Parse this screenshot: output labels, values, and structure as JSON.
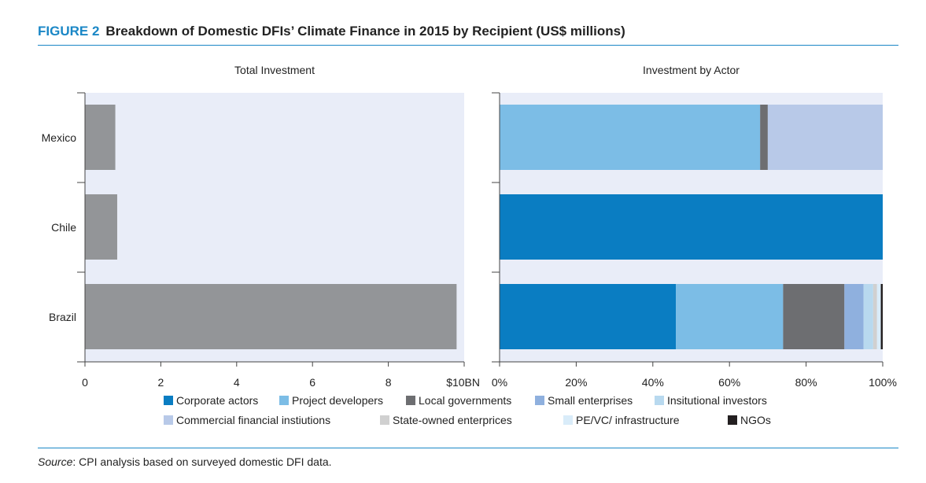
{
  "figure": {
    "label": "FIGURE 2",
    "title": "Breakdown of Domestic DFIs’ Climate Finance in 2015 by Recipient (US$ millions)"
  },
  "source": {
    "prefix": "Source",
    "text": ": CPI analysis based on surveyed domestic DFI data."
  },
  "chart_data": [
    {
      "type": "bar",
      "orientation": "horizontal",
      "title": "Total Investment",
      "categories": [
        "Mexico",
        "Chile",
        "Brazil"
      ],
      "values": [
        0.8,
        0.85,
        9.8
      ],
      "xlim": [
        0,
        10
      ],
      "xticks": [
        "0",
        "2",
        "4",
        "6",
        "8",
        "$10BN"
      ],
      "grid": false
    },
    {
      "type": "bar",
      "orientation": "horizontal",
      "stacked": true,
      "title": "Investment by Actor",
      "categories": [
        "Mexico",
        "Chile",
        "Brazil"
      ],
      "xlim": [
        0,
        100
      ],
      "xticks": [
        "0%",
        "20%",
        "40%",
        "60%",
        "80%",
        "100%"
      ],
      "legend_placement": "bottom",
      "series": [
        {
          "name": "Corporate actors",
          "color": "#0a7dc2",
          "values": [
            0,
            100,
            46
          ]
        },
        {
          "name": "Project developers",
          "color": "#7cbde6",
          "values": [
            68,
            0,
            28
          ]
        },
        {
          "name": "Local governments",
          "color": "#6d6e71",
          "values": [
            2,
            0,
            16
          ]
        },
        {
          "name": "Small enterprises",
          "color": "#8fb0de",
          "values": [
            0,
            0,
            5
          ]
        },
        {
          "name": "Insitutional investors",
          "color": "#b8d9ef",
          "values": [
            0,
            0,
            2.5
          ]
        },
        {
          "name": "Commercial financial instiutions",
          "color": "#b8c9e8",
          "values": [
            30,
            0,
            0
          ]
        },
        {
          "name": "State-owned enterprices",
          "color": "#d0d0d0",
          "values": [
            0,
            0,
            1
          ]
        },
        {
          "name": "PE/VC/ infrastructure",
          "color": "#d9ecf9",
          "values": [
            0,
            0,
            1
          ]
        },
        {
          "name": "NGOs",
          "color": "#231f20",
          "values": [
            0,
            0,
            0.5
          ]
        }
      ]
    }
  ]
}
